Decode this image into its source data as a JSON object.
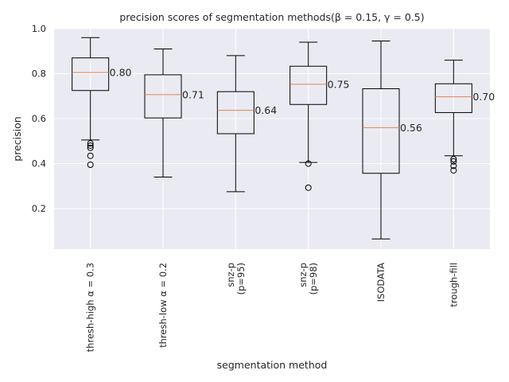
{
  "chart_data": {
    "type": "box",
    "title": "precision scores of segmentation methods(β = 0.15, γ = 0.5)",
    "xlabel": "segmentation method",
    "ylabel": "precision",
    "ylim": [
      0.02,
      1.0
    ],
    "yticks": [
      0.2,
      0.4,
      0.6,
      0.8,
      1.0
    ],
    "ytick_labels": [
      "0.2",
      "0.4",
      "0.6",
      "0.8",
      "1.0"
    ],
    "grid": true,
    "colors": {
      "background": "#eaeaf2",
      "grid": "#ffffff",
      "box": "#000000",
      "median": "#e0864f"
    },
    "categories": [
      "thresh-high α = 0.3",
      "thresh-low α = 0.2",
      "snz-p\n(p=95)",
      "snz-p\n(p=98)",
      "ISODATA",
      "trough-fill"
    ],
    "boxes": [
      {
        "whislo": 0.505,
        "q1": 0.725,
        "med": 0.805,
        "q3": 0.87,
        "whishi": 0.96,
        "fliers": [
          0.49,
          0.48,
          0.47,
          0.435,
          0.395
        ],
        "median_label": "0.80"
      },
      {
        "whislo": 0.34,
        "q1": 0.603,
        "med": 0.707,
        "q3": 0.795,
        "whishi": 0.91,
        "fliers": [],
        "median_label": "0.71"
      },
      {
        "whislo": 0.275,
        "q1": 0.533,
        "med": 0.637,
        "q3": 0.72,
        "whishi": 0.88,
        "fliers": [],
        "median_label": "0.64"
      },
      {
        "whislo": 0.405,
        "q1": 0.663,
        "med": 0.753,
        "q3": 0.833,
        "whishi": 0.94,
        "fliers": [
          0.4,
          0.293
        ],
        "median_label": "0.75"
      },
      {
        "whislo": 0.065,
        "q1": 0.357,
        "med": 0.56,
        "q3": 0.733,
        "whishi": 0.945,
        "fliers": [],
        "median_label": "0.56"
      },
      {
        "whislo": 0.435,
        "q1": 0.627,
        "med": 0.697,
        "q3": 0.755,
        "whishi": 0.86,
        "fliers": [
          0.42,
          0.41,
          0.39,
          0.37
        ],
        "median_label": "0.70"
      }
    ]
  }
}
